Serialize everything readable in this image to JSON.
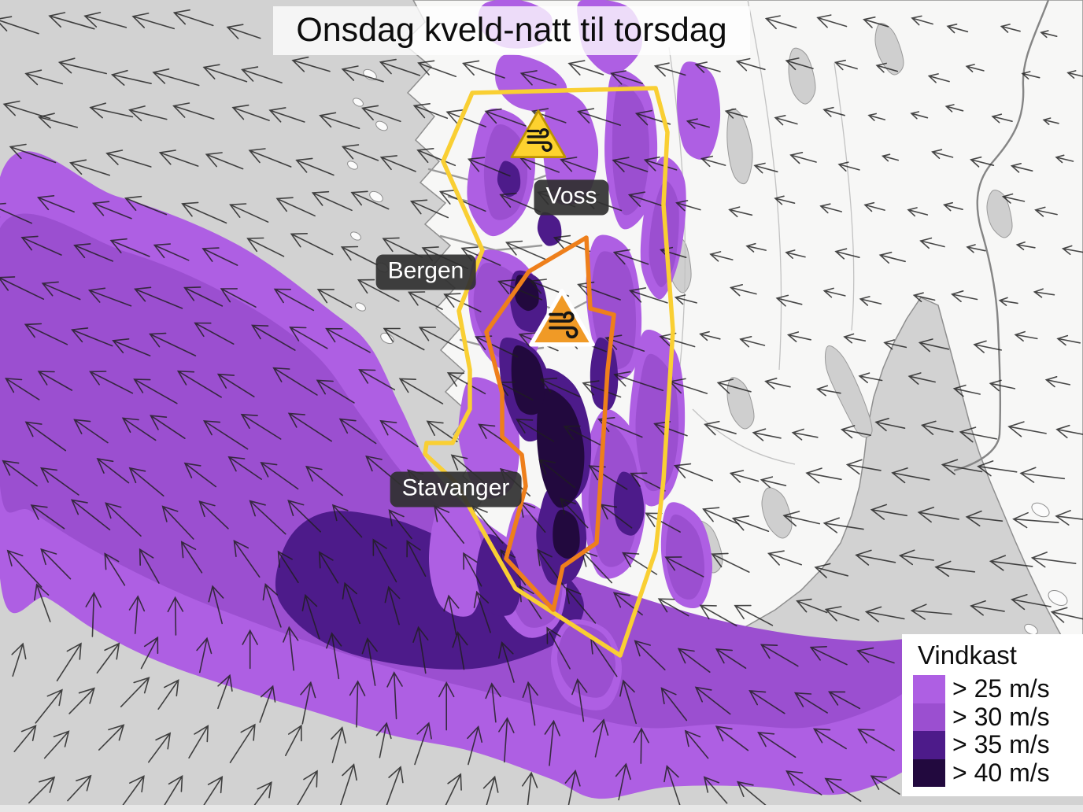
{
  "title": "Onsdag kveld-natt til torsdag",
  "legend": {
    "title": "Vindkast",
    "entries": [
      {
        "label": "> 25 m/s",
        "color": "#ae5fe3"
      },
      {
        "label": "> 30 m/s",
        "color": "#9b4fd0"
      },
      {
        "label": "> 35 m/s",
        "color": "#4d1b8a"
      },
      {
        "label": "> 40 m/s",
        "color": "#22093e"
      }
    ]
  },
  "cities": [
    {
      "name": "Voss"
    },
    {
      "name": "Bergen"
    },
    {
      "name": "Stavanger"
    }
  ],
  "warnings": [
    {
      "level": "yellow",
      "icon": "wind-warning-icon",
      "color": "#fdd22f",
      "outline": "#f9cf33"
    },
    {
      "level": "orange",
      "icon": "wind-warning-icon",
      "color": "#f09a26",
      "outline": "#ee7f1b"
    }
  ],
  "map_colors": {
    "gust25": "#ae5fe3",
    "gust30": "#9b4fd0",
    "gust35": "#4d1b8a",
    "gust40": "#22093e",
    "yellow_polygon": "#f9cf33",
    "orange_polygon": "#ee7f1b",
    "yellow_triangle": "#fdd22f",
    "orange_triangle": "#f09a26"
  }
}
